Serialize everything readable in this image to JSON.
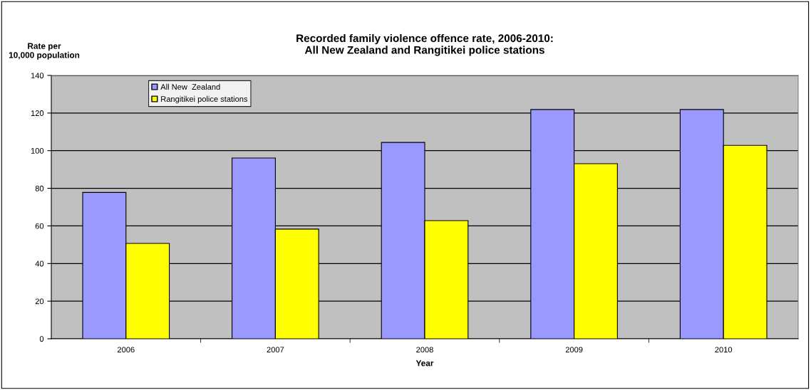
{
  "chart_data": {
    "type": "bar",
    "title": "Recorded family violence offence rate, 2006-2010:\nAll New Zealand and Rangitikei police stations",
    "xlabel": "Year",
    "ylabel": "Rate per\n10,000 population",
    "categories": [
      "2006",
      "2007",
      "2008",
      "2009",
      "2010"
    ],
    "series": [
      {
        "name": "All New  Zealand",
        "color": "#9999ff",
        "values": [
          77.8,
          96.1,
          104.4,
          121.9,
          121.9
        ]
      },
      {
        "name": "Rangitikei police stations",
        "color": "#ffff00",
        "values": [
          50.7,
          58.3,
          62.8,
          93.1,
          102.8
        ]
      }
    ],
    "ylim": [
      0,
      140
    ],
    "yticks": [
      0,
      20,
      40,
      60,
      80,
      100,
      120,
      140
    ],
    "grid": "y",
    "legend": "top left"
  }
}
